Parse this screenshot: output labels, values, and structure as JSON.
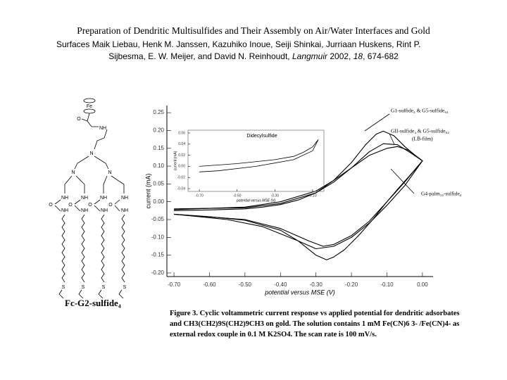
{
  "header": {
    "title": "Preparation of Dendritic Multisulfides and Their Assembly on Air/Water Interfaces and Gold",
    "title_end": "Surfaces",
    "authors_1": "Maik Liebau, Henk M. Janssen, Kazuhiko Inoue, Seiji Shinkai, Jurriaan Huskens, Rint P.",
    "authors_2": "Sijbesma, E. W. Meijer, and David N. Reinhoudt, ",
    "journal": "Langmuir",
    "year": " 2002, ",
    "volume": "18",
    "pages": ", 674-682"
  },
  "structure": {
    "name": "Fc-G2-sulfide₄",
    "atoms": [
      "Fe",
      "O",
      "NH",
      "N",
      "N",
      "N",
      "NH",
      "NH",
      "NH",
      "NH",
      "O",
      "O",
      "O",
      "O",
      "NH",
      "NH",
      "NH",
      "NH",
      "S",
      "S",
      "S",
      "S"
    ]
  },
  "caption": "Figure 3. Cyclic voltammetric current response vs applied potential for dendritic adsorbates and CH3(CH2)9S(CH2)9CH3 on gold. The solution contains 1 mM Fe(CN)6 3- /Fe(CN)4- as external redox couple in 0.1 M K2SO4. The scan rate is 100 mV/s.",
  "chart_data": [
    {
      "type": "line",
      "xlabel": "potential versus MSE (V)",
      "ylabel": "current (mA)",
      "xlim": [
        -0.72,
        0.03
      ],
      "ylim": [
        -0.21,
        0.27
      ],
      "xticks": [
        {
          "value": -0.7,
          "label": "-0.70"
        },
        {
          "value": -0.6,
          "label": "-0.60"
        },
        {
          "value": -0.5,
          "label": "-0.50"
        },
        {
          "value": -0.4,
          "label": "-0.40"
        },
        {
          "value": -0.3,
          "label": "-0.30"
        },
        {
          "value": -0.2,
          "label": "-0.20"
        },
        {
          "value": -0.1,
          "label": "-0.10"
        },
        {
          "value": 0,
          "label": "0.00"
        }
      ],
      "yticks": [
        0.25,
        {
          "value": 0.2,
          "label": "0.20"
        },
        0.15,
        {
          "value": 0.1,
          "label": "0.10"
        },
        0.05,
        {
          "value": 0,
          "label": "0.00"
        },
        -0.05,
        {
          "value": -0.1,
          "label": "-0.10"
        },
        -0.15,
        {
          "value": -0.2,
          "label": "-0.20"
        }
      ],
      "annotations": [
        "G1-sulfide₄ & G5-sulfide₆₄",
        "GII-sulfide₄ & G5-sulfide₆₄",
        "(LB-film)",
        "G4-palm₁₆-sulfide₄"
      ],
      "series": [
        {
          "color": "#000000",
          "x": [
            -0.7,
            -0.6,
            -0.5,
            -0.45,
            -0.4,
            -0.35,
            -0.3,
            -0.25,
            -0.2,
            -0.16,
            -0.13,
            -0.11,
            -0.08,
            -0.05,
            -0.02,
            0.0,
            -0.03,
            -0.07,
            -0.1,
            -0.14,
            -0.18,
            -0.22,
            -0.25,
            -0.27,
            -0.3,
            -0.35,
            -0.4,
            -0.5,
            -0.6,
            -0.7
          ],
          "values": [
            -0.025,
            -0.023,
            -0.02,
            -0.015,
            -0.008,
            0.005,
            0.025,
            0.06,
            0.11,
            0.16,
            0.19,
            0.198,
            0.185,
            0.155,
            0.13,
            0.115,
            0.08,
            0.035,
            0.0,
            -0.05,
            -0.095,
            -0.135,
            -0.155,
            -0.163,
            -0.15,
            -0.11,
            -0.08,
            -0.052,
            -0.042,
            -0.035
          ]
        },
        {
          "color": "#000000",
          "x": [
            -0.7,
            -0.5,
            -0.4,
            -0.3,
            -0.25,
            -0.2,
            -0.15,
            -0.11,
            -0.07,
            -0.03,
            0.0,
            -0.05,
            -0.1,
            -0.15,
            -0.2,
            -0.25,
            -0.28,
            -0.32,
            -0.4,
            -0.5,
            -0.7
          ],
          "values": [
            -0.02,
            -0.017,
            -0.005,
            0.025,
            0.055,
            0.095,
            0.14,
            0.163,
            0.16,
            0.135,
            0.115,
            0.055,
            0.0,
            -0.055,
            -0.095,
            -0.12,
            -0.125,
            -0.11,
            -0.075,
            -0.05,
            -0.035
          ]
        },
        {
          "color": "#000000",
          "x": [
            -0.7,
            -0.5,
            -0.4,
            -0.3,
            -0.25,
            -0.2,
            -0.15,
            -0.1,
            -0.07,
            -0.04,
            0.0,
            -0.05,
            -0.1,
            -0.15,
            -0.2,
            -0.25,
            -0.3,
            -0.35,
            -0.45,
            -0.55,
            -0.7
          ],
          "values": [
            -0.022,
            -0.015,
            0.0,
            0.03,
            0.06,
            0.095,
            0.13,
            0.15,
            0.155,
            0.145,
            0.115,
            0.045,
            -0.01,
            -0.06,
            -0.1,
            -0.125,
            -0.132,
            -0.11,
            -0.07,
            -0.05,
            -0.035
          ]
        }
      ]
    },
    {
      "type": "line",
      "title": "Didecylsulfide",
      "xlabel": "potential versus MSE (V)",
      "ylabel": "current (mA)",
      "xlim": [
        -0.76,
        -0.04
      ],
      "ylim": [
        -0.045,
        0.065
      ],
      "xticks": [
        {
          "value": -0.7,
          "label": "-0.70"
        },
        {
          "value": -0.5,
          "label": "-0.50"
        },
        {
          "value": -0.3,
          "label": "-0.30"
        },
        {
          "value": -0.1,
          "label": "-0.10"
        }
      ],
      "yticks": [
        0.06,
        0.04,
        0.02,
        {
          "value": 0,
          "label": "0.00"
        },
        -0.02,
        -0.04
      ],
      "series": [
        {
          "color": "#000000",
          "x": [
            -0.7,
            -0.5,
            -0.3,
            -0.2,
            -0.15,
            -0.1,
            -0.07,
            -0.1,
            -0.2,
            -0.4,
            -0.6,
            -0.7
          ],
          "values": [
            0.0,
            0.005,
            0.012,
            0.018,
            0.025,
            0.035,
            0.048,
            0.028,
            0.012,
            0.0,
            -0.008,
            -0.01
          ]
        }
      ]
    }
  ]
}
